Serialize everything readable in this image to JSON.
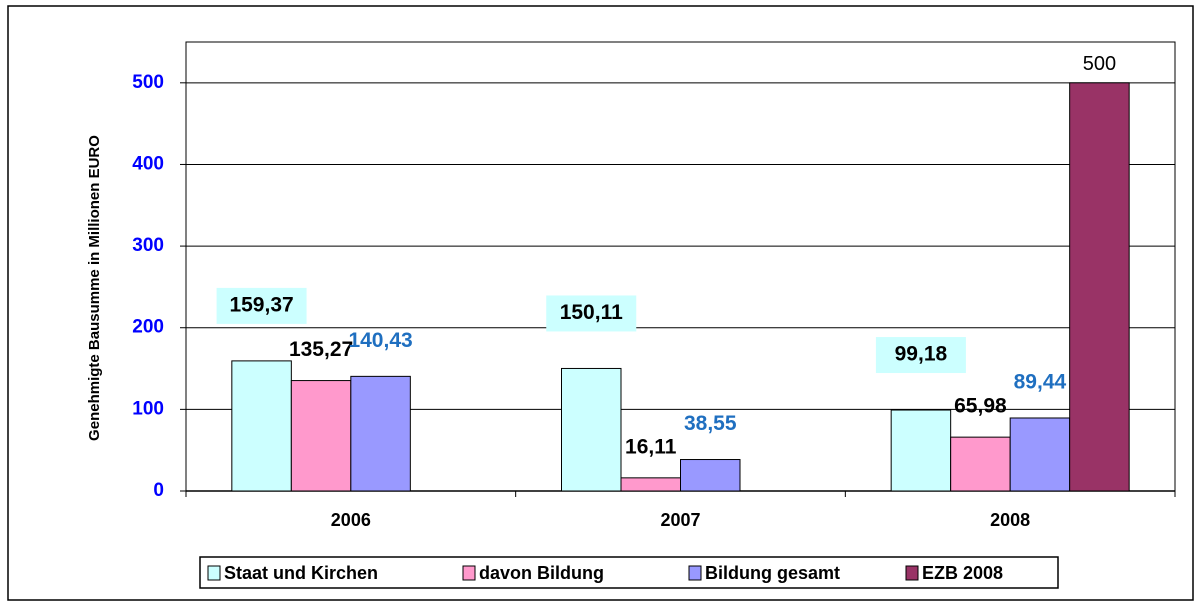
{
  "chart_data": {
    "type": "bar",
    "y_axis_label": "Genehmigte Bausumme in  Millionen EURO",
    "categories": [
      "2006",
      "2007",
      "2008"
    ],
    "series": [
      {
        "name": "Staat und Kirchen",
        "color": "#ccffff",
        "label_color": "#000000",
        "values": [
          159.37,
          150.11,
          99.18
        ],
        "value_labels": [
          "159,37",
          "150,11",
          "99,18"
        ]
      },
      {
        "name": "davon Bildung",
        "color": "#ff99cc",
        "label_color": "#000000",
        "values": [
          135.27,
          16.11,
          65.98
        ],
        "value_labels": [
          "135,27",
          "16,11",
          "65,98"
        ]
      },
      {
        "name": "Bildung gesamt",
        "color": "#9999ff",
        "label_color": "#1f6fc0",
        "values": [
          140.43,
          38.55,
          89.44
        ],
        "value_labels": [
          "140,43",
          "38,55",
          "89,44"
        ]
      },
      {
        "name": "EZB 2008",
        "color": "#993366",
        "label_color": "#000000",
        "values": [
          null,
          null,
          500
        ]
      }
    ],
    "ylim": [
      0,
      550
    ],
    "yticks": [
      0,
      100,
      200,
      300,
      400,
      500
    ],
    "grid": true,
    "legend": "bottom"
  }
}
